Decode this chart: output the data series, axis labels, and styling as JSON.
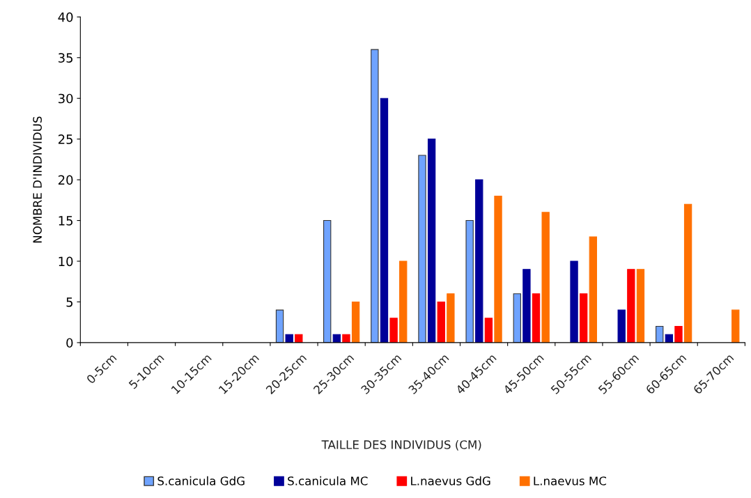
{
  "chart_data": {
    "type": "bar",
    "xlabel": "TAILLE DES INDIVIDUS (CM)",
    "ylabel": "NOMBRE D'INDIVIDUS",
    "categories": [
      "0-5cm",
      "5-10cm",
      "10-15cm",
      "15-20cm",
      "20-25cm",
      "25-30cm",
      "30-35cm",
      "35-40cm",
      "40-45cm",
      "45-50cm",
      "50-55cm",
      "55-60cm",
      "60-65cm",
      "65-70cm"
    ],
    "series": [
      {
        "name": "S.canicula GdG",
        "color": "#6fa3ff",
        "values": [
          0,
          0,
          0,
          0,
          4,
          15,
          36,
          23,
          15,
          6,
          0,
          0,
          2,
          0
        ]
      },
      {
        "name": "S.canicula MC",
        "color": "#000099",
        "values": [
          0,
          0,
          0,
          0,
          1,
          1,
          30,
          25,
          20,
          9,
          10,
          4,
          1,
          0
        ]
      },
      {
        "name": "L.naevus GdG",
        "color": "#ff0000",
        "values": [
          0,
          0,
          0,
          0,
          1,
          1,
          3,
          5,
          3,
          6,
          6,
          9,
          2,
          0
        ]
      },
      {
        "name": "L.naevus MC",
        "color": "#ff7000",
        "values": [
          0,
          0,
          0,
          0,
          0,
          5,
          10,
          6,
          18,
          16,
          13,
          9,
          17,
          4
        ]
      }
    ],
    "ylim": [
      0,
      40
    ],
    "yticks": [
      0,
      5,
      10,
      15,
      20,
      25,
      30,
      35,
      40
    ],
    "grid": false,
    "legend": "bottom"
  }
}
